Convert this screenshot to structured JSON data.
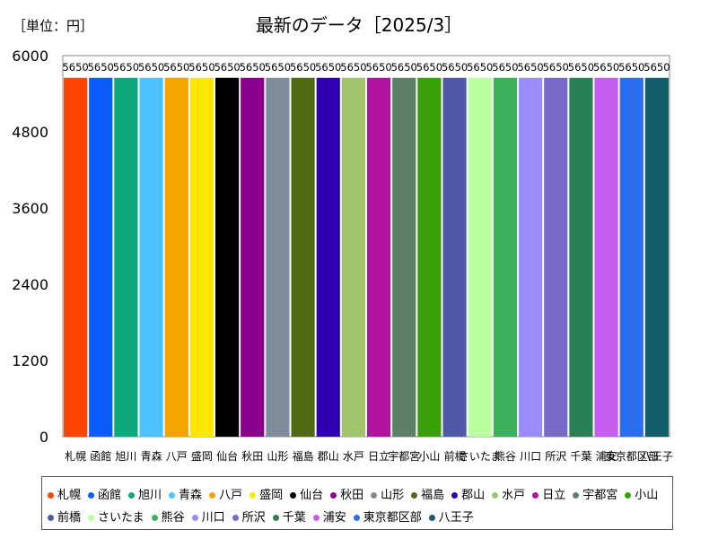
{
  "header": {
    "unit_label": "［単位：円］",
    "title": "最新のデータ［2025/3］"
  },
  "chart_data": {
    "type": "bar",
    "title": "最新のデータ［2025/3］",
    "unit": "［単位：円］",
    "xlabel": "",
    "ylabel": "",
    "ylim": [
      0,
      6000
    ],
    "yticks": [
      0,
      1200,
      2400,
      3600,
      4800,
      6000
    ],
    "grid": false,
    "legend_position": "bottom",
    "categories": [
      "札幌",
      "函館",
      "旭川",
      "青森",
      "八戸",
      "盛岡",
      "仙台",
      "秋田",
      "山形",
      "福島",
      "郡山",
      "水戸",
      "日立",
      "宇都宮",
      "小山",
      "前橋",
      "さいたま",
      "熊谷",
      "川口",
      "所沢",
      "千葉",
      "浦安",
      "東京都区部",
      "八王子"
    ],
    "values": [
      5650,
      5650,
      5650,
      5650,
      5650,
      5650,
      5650,
      5650,
      5650,
      5650,
      5650,
      5650,
      5650,
      5650,
      5650,
      5650,
      5650,
      5650,
      5650,
      5650,
      5650,
      5650,
      5650,
      5650
    ],
    "colors": [
      "#ff4500",
      "#0a5cff",
      "#0aa87a",
      "#4cc3ff",
      "#f5a300",
      "#ffe800",
      "#000000",
      "#8b008b",
      "#7f8c99",
      "#4f6a10",
      "#2f00b0",
      "#a0c46a",
      "#b0139e",
      "#5e8069",
      "#3aa00a",
      "#5059a8",
      "#baffa0",
      "#3cb05a",
      "#9a8cff",
      "#7a6ac8",
      "#2a8055",
      "#c65bf0",
      "#2a6ef0",
      "#135e6b"
    ]
  }
}
